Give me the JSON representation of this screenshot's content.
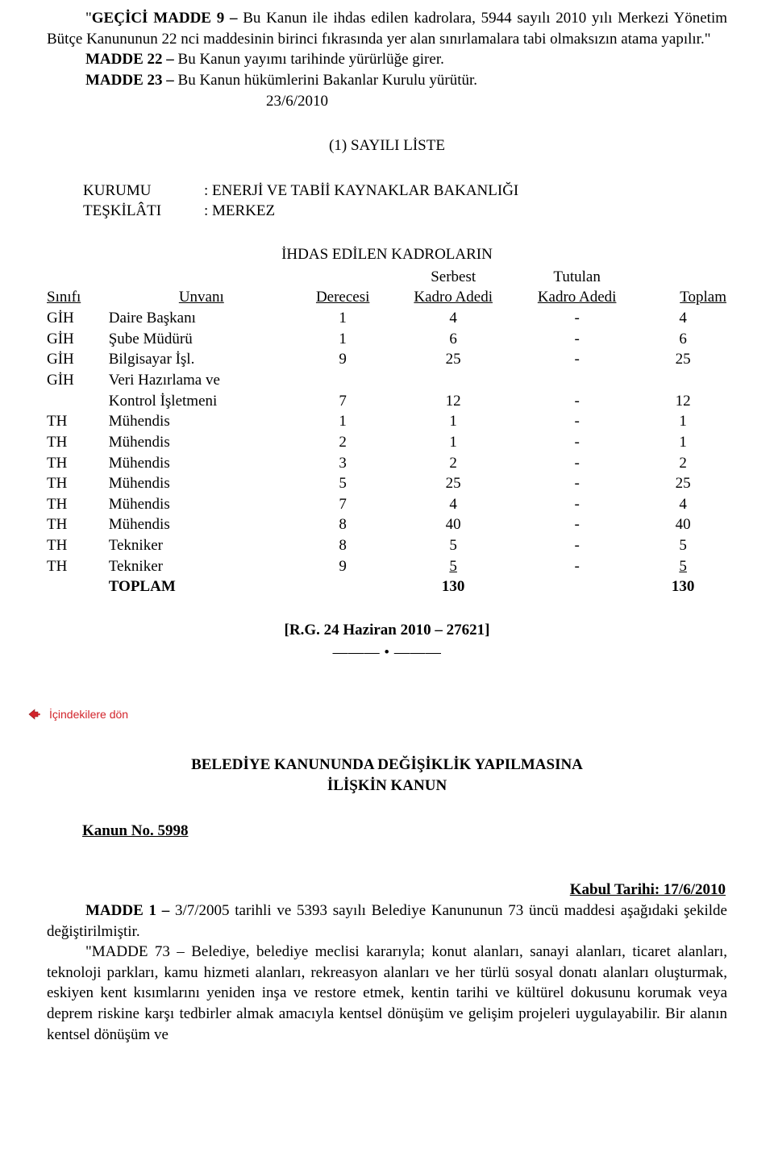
{
  "intro": {
    "p1_open_quote": "\"",
    "p1_bold": "GEÇİCİ MADDE 9 – ",
    "p1_rest": "Bu Kanun ile ihdas edilen kadrolara, 5944 sayılı 2010 yılı Merkezi Yönetim Bütçe Kanununun 22 nci maddesinin birinci fıkrasında yer alan sınırlamalara tabi olmaksızın atama yapılır.\"",
    "p2_bold": "MADDE 22 – ",
    "p2_rest": "Bu Kanun yayımı tarihinde yürürlüğe girer.",
    "p3_bold": "MADDE 23 – ",
    "p3_rest": "Bu Kanun hükümlerini Bakanlar Kurulu yürütür.",
    "date": "23/6/2010"
  },
  "list_header": "(1) SAYILI LİSTE",
  "org": {
    "label1": "KURUMU",
    "value1": ": ENERJİ VE TABİİ KAYNAKLAR BAKANLIĞI",
    "label2": "TEŞKİLÂTI",
    "value2": ": MERKEZ"
  },
  "table": {
    "title": "İHDAS EDİLEN KADROLARIN",
    "headers": {
      "sinif": "Sınıfı",
      "unvan": "Unvanı",
      "derece": "Derecesi",
      "serbest_upper": "Serbest",
      "serbest_lower": "Kadro Adedi",
      "tutulan_upper": "Tutulan",
      "tutulan_lower": "Kadro Adedi",
      "toplam": "Toplam"
    },
    "rows": [
      {
        "sinif": "GİH",
        "unvan": "Daire Başkanı",
        "derece": "1",
        "serbest": "4",
        "tutulan": "-",
        "toplam": "4"
      },
      {
        "sinif": "GİH",
        "unvan": "Şube Müdürü",
        "derece": "1",
        "serbest": "6",
        "tutulan": "-",
        "toplam": "6"
      },
      {
        "sinif": "GİH",
        "unvan": "Bilgisayar İşl.",
        "derece": "9",
        "serbest": "25",
        "tutulan": "-",
        "toplam": "25"
      },
      {
        "sinif": "GİH",
        "unvan": "Veri Hazırlama ve",
        "derece": "",
        "serbest": "",
        "tutulan": "",
        "toplam": ""
      },
      {
        "sinif": "",
        "unvan": "Kontrol  İşletmeni",
        "derece": "7",
        "serbest": "12",
        "tutulan": "-",
        "toplam": "12"
      },
      {
        "sinif": "TH",
        "unvan": "Mühendis",
        "derece": "1",
        "serbest": "1",
        "tutulan": "-",
        "toplam": "1"
      },
      {
        "sinif": "TH",
        "unvan": "Mühendis",
        "derece": "2",
        "serbest": "1",
        "tutulan": "-",
        "toplam": "1"
      },
      {
        "sinif": "TH",
        "unvan": "Mühendis",
        "derece": "3",
        "serbest": "2",
        "tutulan": "-",
        "toplam": "2"
      },
      {
        "sinif": "TH",
        "unvan": "Mühendis",
        "derece": "5",
        "serbest": "25",
        "tutulan": "-",
        "toplam": "25"
      },
      {
        "sinif": "TH",
        "unvan": "Mühendis",
        "derece": "7",
        "serbest": "4",
        "tutulan": "-",
        "toplam": "4"
      },
      {
        "sinif": "TH",
        "unvan": "Mühendis",
        "derece": "8",
        "serbest": "40",
        "tutulan": "-",
        "toplam": "40"
      },
      {
        "sinif": "TH",
        "unvan": "Tekniker",
        "derece": "8",
        "serbest": "5",
        "tutulan": "-",
        "toplam": "5"
      },
      {
        "sinif": "TH",
        "unvan": "Tekniker",
        "derece": "9",
        "serbest": "5",
        "tutulan": "-",
        "toplam": "5",
        "underline": true
      }
    ],
    "total": {
      "label": "TOPLAM",
      "serbest": "130",
      "toplam": "130"
    }
  },
  "ref": "[R.G. 24 Haziran 2010 – 27621]",
  "divider": "——— • ———",
  "back_link": "İçindekilere dön",
  "section2": {
    "title1": "BELEDİYE KANUNUNDA DEĞİŞİKLİK YAPILMASINA",
    "title2": "İLİŞKİN KANUN",
    "kanun_no": "Kanun No. 5998",
    "kabul_tarihi": "Kabul Tarihi: 17/6/2010",
    "p1_bold": "MADDE 1 – ",
    "p1_rest": "3/7/2005 tarihli ve 5393 sayılı Belediye Kanununun 73 üncü maddesi aşağıdaki şekilde değiştirilmiştir.",
    "p2": "\"MADDE 73 – Belediye, belediye meclisi kararıyla; konut alanları, sanayi alanları, ticaret alanları, teknoloji parkları, kamu hizmeti alanları, rekreasyon alanları ve her türlü sosyal donatı alanları oluşturmak, eskiyen kent kısımlarını yeniden inşa ve restore etmek, kentin tarihi ve kültürel dokusunu korumak veya deprem riskine karşı tedbirler almak amacıyla kentsel dönüşüm ve gelişim projeleri uygulayabilir. Bir alanın kentsel dönüşüm ve"
  },
  "colors": {
    "text": "#000000",
    "background": "#ffffff",
    "link": "#d2232a"
  }
}
